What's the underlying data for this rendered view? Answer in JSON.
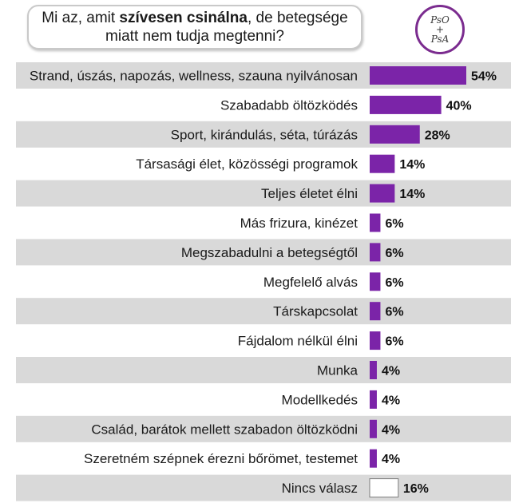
{
  "header": {
    "question_pre": "Mi az, amit ",
    "question_bold": "szívesen csinálna",
    "question_post": ", de betegsége",
    "question_line2": "miatt nem tudja megtenni?"
  },
  "logo": {
    "line1": "PsO",
    "line2": "+",
    "line3": "PsA"
  },
  "colors": {
    "bar": "#7b24a8",
    "bar_none": "#ffffff",
    "band_alt": "#d9d9d9",
    "band": "#ffffff"
  },
  "chart_data": {
    "type": "bar",
    "orientation": "horizontal",
    "categories": [
      "Strand, úszás, napozás, wellness, szauna nyilvánosan",
      "Szabadabb öltözködés",
      "Sport, kirándulás, séta, túrázás",
      "Társasági élet, közösségi programok",
      "Teljes életet élni",
      "Más frizura, kinézet",
      "Megszabadulni a betegségtől",
      "Megfelelő alvás",
      "Társkapcsolat",
      "Fájdalom nélkül élni",
      "Munka",
      "Modellkedés",
      "Család, barátok mellett szabadon öltözködni",
      "Szeretném szépnek érezni bőrömet, testemet",
      "Nincs válasz"
    ],
    "values": [
      54,
      40,
      28,
      14,
      14,
      6,
      6,
      6,
      6,
      6,
      4,
      4,
      4,
      4,
      16
    ],
    "value_labels": [
      "54%",
      "40%",
      "28%",
      "14%",
      "14%",
      "6%",
      "6%",
      "6%",
      "6%",
      "6%",
      "4%",
      "4%",
      "4%",
      "4%",
      "16%"
    ],
    "unit": "%",
    "xlim": [
      0,
      54
    ]
  }
}
